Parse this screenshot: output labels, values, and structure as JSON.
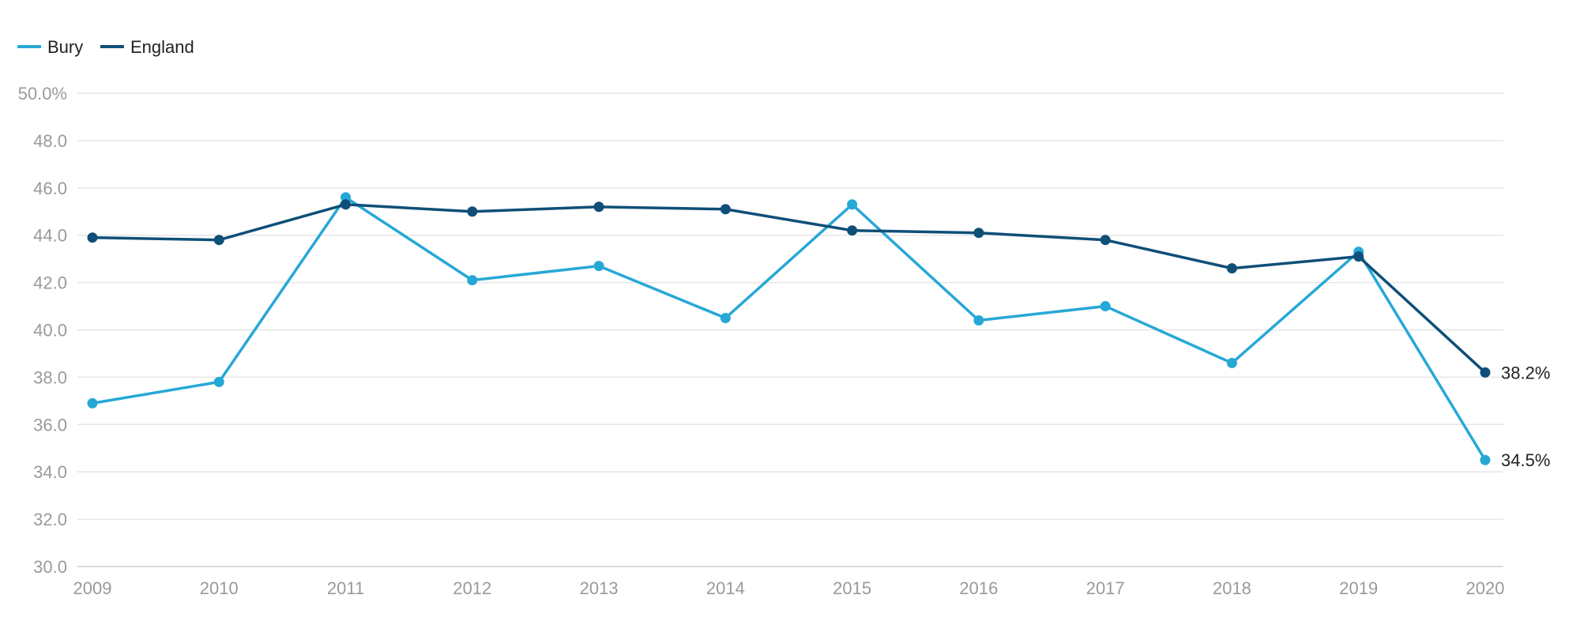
{
  "chart_data": {
    "type": "line",
    "x": [
      "2009",
      "2010",
      "2011",
      "2012",
      "2013",
      "2014",
      "2015",
      "2016",
      "2017",
      "2018",
      "2019",
      "2020"
    ],
    "series": [
      {
        "name": "Bury",
        "color": "#26a8d6",
        "values": [
          36.9,
          37.8,
          45.6,
          42.1,
          42.7,
          40.5,
          45.3,
          40.4,
          41.0,
          38.6,
          43.3,
          34.5
        ],
        "end_label": "34.5%"
      },
      {
        "name": "England",
        "color": "#0f4f78",
        "values": [
          43.9,
          43.8,
          45.3,
          45.0,
          45.2,
          45.1,
          44.2,
          44.1,
          43.8,
          42.6,
          43.1,
          38.2
        ],
        "end_label": "38.2%"
      }
    ],
    "ylim": [
      30,
      50
    ],
    "yticks": [
      30,
      32,
      34,
      36,
      38,
      40,
      42,
      44,
      46,
      48,
      50
    ],
    "ytick_labels": [
      "30.0",
      "32.0",
      "34.0",
      "36.0",
      "38.0",
      "40.0",
      "42.0",
      "44.0",
      "46.0",
      "48.0",
      "50.0%"
    ],
    "grid": true,
    "legend_position": "top-left"
  }
}
